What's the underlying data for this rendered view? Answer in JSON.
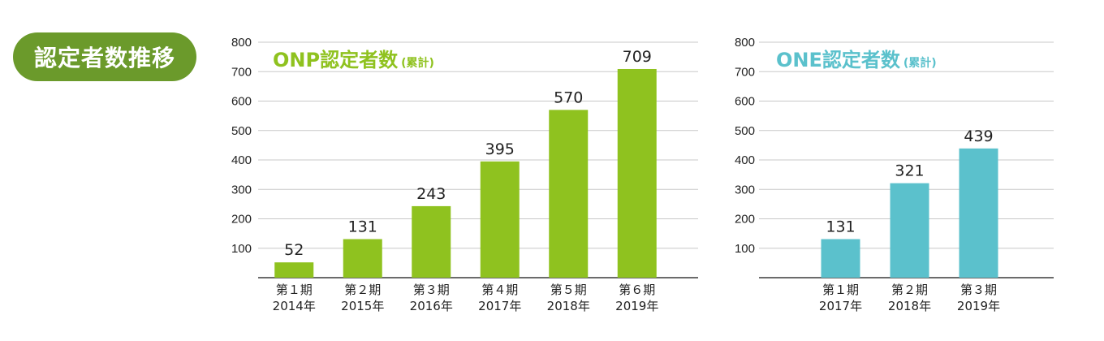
{
  "badge": {
    "label": "認定者数推移",
    "color": "#6b9a2b"
  },
  "chart_data": [
    {
      "type": "bar",
      "title": "ONP認定者数",
      "subtitle": "(累計)",
      "color": "#8fc21f",
      "categories": [
        [
          "第１期",
          "2014年"
        ],
        [
          "第２期",
          "2015年"
        ],
        [
          "第３期",
          "2016年"
        ],
        [
          "第４期",
          "2017年"
        ],
        [
          "第５期",
          "2018年"
        ],
        [
          "第６期",
          "2019年"
        ]
      ],
      "values": [
        52,
        131,
        243,
        395,
        570,
        709
      ],
      "ylim": [
        0,
        800
      ],
      "yticks": [
        100,
        200,
        300,
        400,
        500,
        600,
        700,
        800
      ],
      "grid": true
    },
    {
      "type": "bar",
      "title": "ONE認定者数",
      "subtitle": "(累計)",
      "color": "#5bc1cc",
      "categories": [
        [
          "第１期",
          "2017年"
        ],
        [
          "第２期",
          "2018年"
        ],
        [
          "第３期",
          "2019年"
        ]
      ],
      "values": [
        131,
        321,
        439
      ],
      "ylim": [
        0,
        800
      ],
      "yticks": [
        100,
        200,
        300,
        400,
        500,
        600,
        700,
        800
      ],
      "grid": true
    }
  ]
}
